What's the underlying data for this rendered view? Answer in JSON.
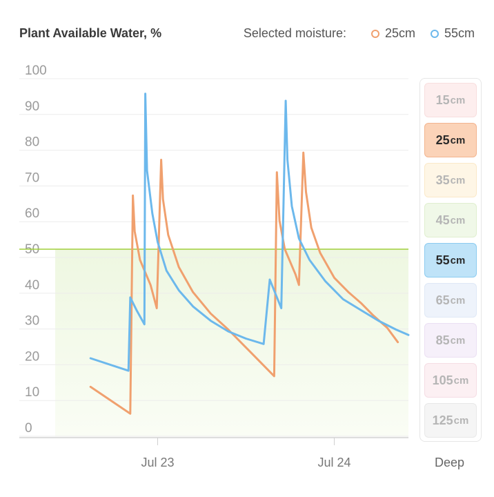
{
  "header": {
    "title": "Plant Available Water, %",
    "legend_label": "Selected moisture:"
  },
  "legend": [
    {
      "name": "25cm",
      "color": "#f0a06e"
    },
    {
      "name": "55cm",
      "color": "#6cb8ec"
    }
  ],
  "depth_selector": {
    "buttons": [
      {
        "value": "15",
        "unit": "cm",
        "bg": "#fdeeee",
        "border": "#f8dede",
        "active": false
      },
      {
        "value": "25",
        "unit": "cm",
        "bg": "#fbd3b8",
        "border": "#f3b48e",
        "active": true
      },
      {
        "value": "35",
        "unit": "cm",
        "bg": "#fef6e6",
        "border": "#fbe9c8",
        "active": false
      },
      {
        "value": "45",
        "unit": "cm",
        "bg": "#f0f8e8",
        "border": "#e0efcf",
        "active": false
      },
      {
        "value": "55",
        "unit": "cm",
        "bg": "#bfe3f8",
        "border": "#8ccbf0",
        "active": true
      },
      {
        "value": "65",
        "unit": "cm",
        "bg": "#eef3fb",
        "border": "#dfe8f6",
        "active": false
      },
      {
        "value": "85",
        "unit": "cm",
        "bg": "#f6f0fa",
        "border": "#ebe0f3",
        "active": false
      },
      {
        "value": "105",
        "unit": "cm",
        "bg": "#fcf0f3",
        "border": "#f5dde4",
        "active": false
      },
      {
        "value": "125",
        "unit": "cm",
        "bg": "#f5f5f5",
        "border": "#e8e8e8",
        "active": false
      }
    ],
    "footer_label": "Deep"
  },
  "chart_data": {
    "type": "line",
    "ylim": [
      0,
      100
    ],
    "y_ticks": [
      0,
      10,
      20,
      30,
      40,
      50,
      60,
      70,
      80,
      90,
      100
    ],
    "x_ticks": [
      {
        "label": "Jul 23",
        "t": 1.0
      },
      {
        "label": "Jul 24",
        "t": 2.0
      }
    ],
    "xlim": [
      0.42,
      2.42
    ],
    "threshold": 50,
    "threshold_color": "#9fcf3a",
    "series": [
      {
        "name": "25cm",
        "color": "#f0a06e",
        "points": [
          [
            0.62,
            11.5
          ],
          [
            0.845,
            4
          ],
          [
            0.86,
            65
          ],
          [
            0.87,
            55
          ],
          [
            0.9,
            47
          ],
          [
            0.96,
            40
          ],
          [
            0.995,
            33.5
          ],
          [
            1.02,
            75
          ],
          [
            1.03,
            64
          ],
          [
            1.06,
            54
          ],
          [
            1.12,
            45
          ],
          [
            1.2,
            38
          ],
          [
            1.3,
            32
          ],
          [
            1.4,
            27.5
          ],
          [
            1.5,
            22.5
          ],
          [
            1.6,
            17.5
          ],
          [
            1.66,
            14.5
          ],
          [
            1.675,
            71.5
          ],
          [
            1.69,
            58
          ],
          [
            1.72,
            50
          ],
          [
            1.78,
            43
          ],
          [
            1.8,
            40
          ],
          [
            1.825,
            77
          ],
          [
            1.84,
            66
          ],
          [
            1.87,
            56
          ],
          [
            1.92,
            49
          ],
          [
            2.0,
            42
          ],
          [
            2.08,
            38
          ],
          [
            2.15,
            35
          ],
          [
            2.22,
            31.5
          ],
          [
            2.3,
            28
          ],
          [
            2.36,
            24
          ]
        ]
      },
      {
        "name": "55cm",
        "color": "#6cb8ec",
        "points": [
          [
            0.62,
            19.5
          ],
          [
            0.835,
            16
          ],
          [
            0.845,
            36.5
          ],
          [
            0.88,
            33
          ],
          [
            0.925,
            29
          ],
          [
            0.93,
            93.5
          ],
          [
            0.94,
            72
          ],
          [
            0.97,
            60
          ],
          [
            1.0,
            52
          ],
          [
            1.05,
            44
          ],
          [
            1.12,
            38.5
          ],
          [
            1.2,
            34
          ],
          [
            1.3,
            30
          ],
          [
            1.4,
            27
          ],
          [
            1.5,
            25
          ],
          [
            1.6,
            23.5
          ],
          [
            1.635,
            41.5
          ],
          [
            1.7,
            33.5
          ],
          [
            1.725,
            91.5
          ],
          [
            1.735,
            75
          ],
          [
            1.76,
            62
          ],
          [
            1.8,
            53
          ],
          [
            1.86,
            47
          ],
          [
            1.95,
            41
          ],
          [
            2.05,
            36
          ],
          [
            2.15,
            33
          ],
          [
            2.25,
            30
          ],
          [
            2.35,
            27.5
          ],
          [
            2.42,
            26
          ]
        ]
      }
    ]
  }
}
